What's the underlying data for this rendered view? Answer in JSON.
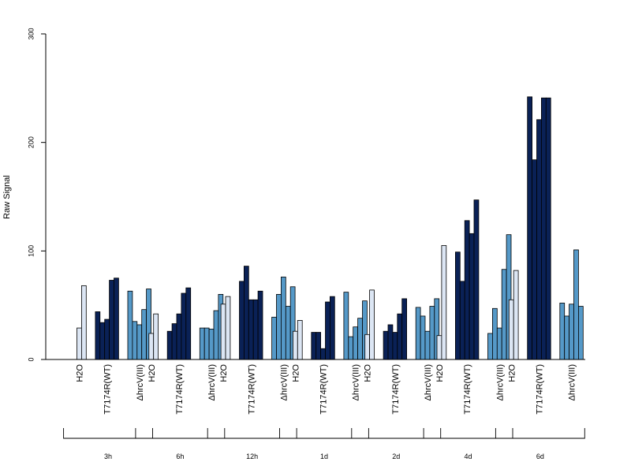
{
  "chart_data": {
    "type": "bar",
    "ylabel": "Raw Signal",
    "ylim": [
      0,
      300
    ],
    "yticks": [
      0,
      100,
      200,
      300
    ],
    "treatments": [
      "H2O",
      "T7174R(WT)",
      "ΔhrcV(III)"
    ],
    "colors": {
      "H2O": "#dce6f4",
      "T7174R(WT)": "#0a2156",
      "ΔhrcV(III)": "#5599c8"
    },
    "groups": [
      {
        "label": "3h",
        "values": {
          "H2O": [
            0,
            29,
            68
          ],
          "T7174R(WT)": [
            44,
            34,
            37,
            73,
            75
          ],
          "ΔhrcV(III)": [
            63,
            35,
            32,
            46,
            65
          ]
        }
      },
      {
        "label": "6h",
        "values": {
          "H2O": [
            0,
            24,
            42
          ],
          "T7174R(WT)": [
            26,
            33,
            42,
            61,
            66
          ],
          "ΔhrcV(III)": [
            29,
            29,
            28,
            45,
            60
          ]
        }
      },
      {
        "label": "12h",
        "values": {
          "H2O": [
            0,
            51,
            58
          ],
          "T7174R(WT)": [
            72,
            86,
            55,
            55,
            63
          ],
          "ΔhrcV(III)": [
            39,
            60,
            76,
            49,
            67
          ]
        }
      },
      {
        "label": "1d",
        "values": {
          "H2O": [
            0,
            26,
            36
          ],
          "T7174R(WT)": [
            25,
            25,
            10,
            53,
            58
          ],
          "ΔhrcV(III)": [
            62,
            21,
            30,
            38,
            54
          ]
        }
      },
      {
        "label": "2d",
        "values": {
          "H2O": [
            0,
            23,
            64
          ],
          "T7174R(WT)": [
            26,
            32,
            25,
            42,
            56
          ],
          "ΔhrcV(III)": [
            48,
            40,
            26,
            49,
            56
          ]
        }
      },
      {
        "label": "4d",
        "values": {
          "H2O": [
            0,
            22,
            105
          ],
          "T7174R(WT)": [
            99,
            72,
            128,
            116,
            147
          ],
          "ΔhrcV(III)": [
            24,
            47,
            29,
            83,
            115
          ]
        }
      },
      {
        "label": "6d",
        "values": {
          "H2O": [
            0,
            55,
            82
          ],
          "T7174R(WT)": [
            242,
            184,
            221,
            241,
            241
          ],
          "ΔhrcV(III)": [
            52,
            40,
            51,
            101,
            49
          ]
        }
      }
    ]
  }
}
